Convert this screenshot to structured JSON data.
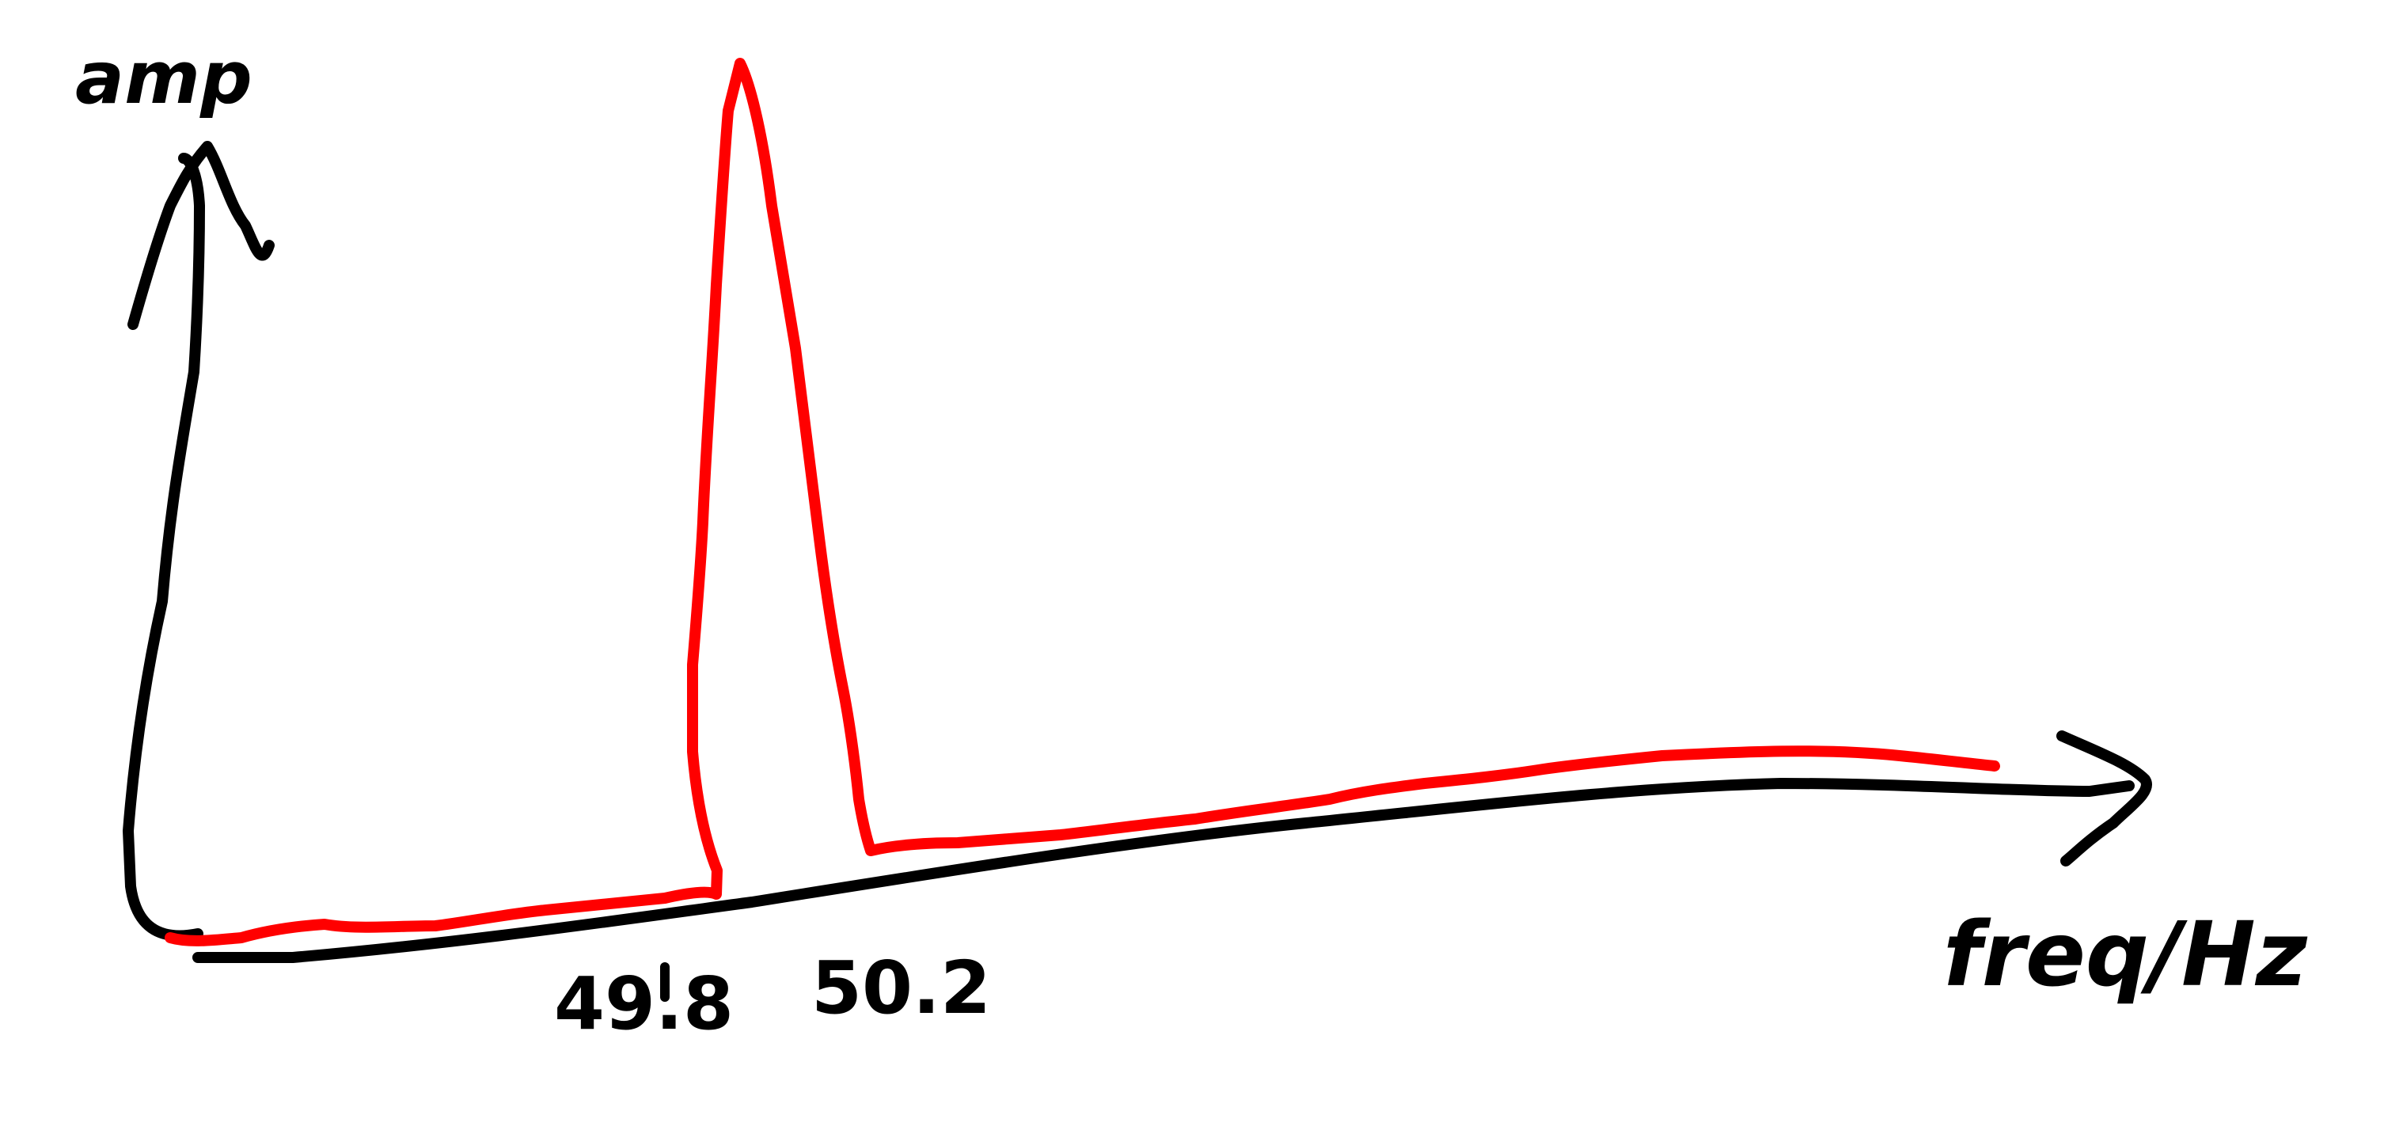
{
  "diagram": {
    "y_axis_label": "amp",
    "x_axis_label": "freq/Hz",
    "tick_labels": [
      "49.8",
      "50.2"
    ],
    "colors": {
      "axes": "#000000",
      "spectrum": "#ff0000",
      "background": "#ffffff"
    }
  }
}
